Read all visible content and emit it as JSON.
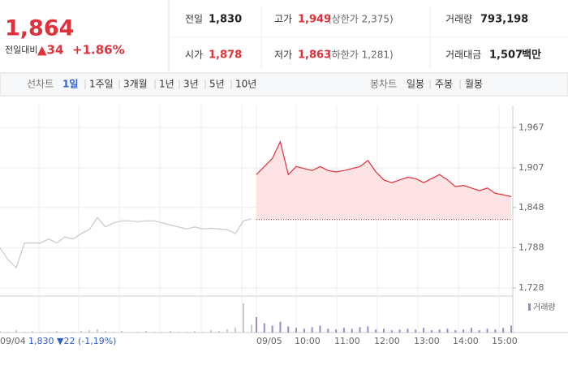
{
  "quote": {
    "price": "1,864",
    "change_label": "전일대비",
    "change": "▲34",
    "change_pct": "+1.86%"
  },
  "info": [
    {
      "label": "전일",
      "value": "1,830"
    },
    {
      "label": "고가",
      "value": "1,949",
      "note": "(상한가 2,375)"
    },
    {
      "label": "거래량",
      "value": "793,198"
    },
    {
      "label": "시가",
      "value": "1,878"
    },
    {
      "label": "저가",
      "value": "1,863",
      "note": "(하한가 1,281)"
    },
    {
      "label": "거래대금",
      "value": "1,507",
      "unit": "백만"
    }
  ],
  "tabs": {
    "line_label": "선차트",
    "periods": [
      "1일",
      "1주일",
      "3개월",
      "1년",
      "3년",
      "5년",
      "10년"
    ],
    "active": 0,
    "candle_label": "봉차트",
    "candles": [
      "일봉",
      "주봉",
      "월봉"
    ]
  },
  "chart_data": {
    "type": "line",
    "ylim": [
      1716,
      2000
    ],
    "yticks": [
      {
        "value": 1967,
        "label": "1,967"
      },
      {
        "value": 1907,
        "label": "1,907"
      },
      {
        "value": 1848,
        "label": "1,848"
      },
      {
        "value": 1788,
        "label": "1,788"
      },
      {
        "value": 1728,
        "label": "1,728"
      }
    ],
    "baseline": 1830,
    "x_labels": [
      "09/04",
      "09/05",
      "10:00",
      "11:00",
      "12:00",
      "13:00",
      "14:00",
      "15:00"
    ],
    "prev_summary": "1,830 ▼22 (-1,19%)",
    "series": [
      {
        "color": "#c8c8c8",
        "values": [
          1788,
          1770,
          1758,
          1795,
          1795,
          1795,
          1801,
          1795,
          1804,
          1801,
          1809,
          1815,
          1833,
          1819,
          1825,
          1828,
          1828,
          1827,
          1828,
          1828,
          1825,
          1822,
          1819,
          1816,
          1819,
          1816,
          1817,
          1816,
          1815,
          1809,
          1828,
          1831
        ]
      },
      {
        "color": "#e0313b",
        "values": [
          1897,
          1909,
          1921,
          1946,
          1897,
          1909,
          1906,
          1903,
          1909,
          1903,
          1901,
          1903,
          1906,
          1909,
          1918,
          1901,
          1889,
          1885,
          1889,
          1893,
          1891,
          1885,
          1891,
          1897,
          1889,
          1879,
          1881,
          1877,
          1873,
          1877,
          1869,
          1867,
          1864
        ]
      }
    ],
    "volume": {
      "legend": "거래량",
      "ylim": [
        0,
        40
      ],
      "series": [
        {
          "color": "#c8c8c8",
          "values": [
            2,
            1,
            3,
            1,
            2,
            1,
            1,
            2,
            1,
            1,
            2,
            3,
            4,
            2,
            1,
            2,
            1,
            1,
            2,
            1,
            1,
            2,
            1,
            1,
            2,
            1,
            3,
            2,
            4,
            6,
            38,
            10
          ]
        },
        {
          "color": "#9a8ac8",
          "values": [
            20,
            12,
            9,
            14,
            8,
            6,
            5,
            7,
            9,
            5,
            4,
            6,
            5,
            7,
            8,
            4,
            5,
            3,
            4,
            5,
            4,
            6,
            3,
            4,
            5,
            3,
            4,
            6,
            3,
            5,
            4,
            6,
            9
          ]
        }
      ]
    }
  }
}
